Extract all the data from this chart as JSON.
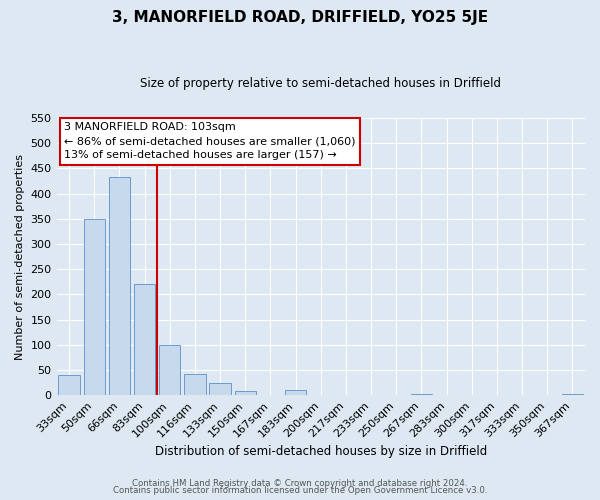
{
  "title": "3, MANORFIELD ROAD, DRIFFIELD, YO25 5JE",
  "subtitle": "Size of property relative to semi-detached houses in Driffield",
  "xlabel": "Distribution of semi-detached houses by size in Driffield",
  "ylabel": "Number of semi-detached properties",
  "bar_labels": [
    "33sqm",
    "50sqm",
    "66sqm",
    "83sqm",
    "100sqm",
    "116sqm",
    "133sqm",
    "150sqm",
    "167sqm",
    "183sqm",
    "200sqm",
    "217sqm",
    "233sqm",
    "250sqm",
    "267sqm",
    "283sqm",
    "300sqm",
    "317sqm",
    "333sqm",
    "350sqm",
    "367sqm"
  ],
  "bar_values": [
    40,
    350,
    433,
    220,
    100,
    43,
    25,
    8,
    0,
    10,
    0,
    0,
    0,
    0,
    3,
    0,
    0,
    0,
    0,
    0,
    3
  ],
  "bar_color": "#c6d9ed",
  "bar_edge_color": "#5b8fc9",
  "ylim_max": 550,
  "yticks": [
    0,
    50,
    100,
    150,
    200,
    250,
    300,
    350,
    400,
    450,
    500,
    550
  ],
  "vline_position": 3.5,
  "prop_label": "3 MANORFIELD ROAD: 103sqm",
  "ann_line1": "← 86% of semi-detached houses are smaller (1,060)",
  "ann_line2": "13% of semi-detached houses are larger (157) →",
  "vline_color": "#cc0000",
  "ann_edge_color": "#cc0000",
  "ann_face_color": "#ffffff",
  "bg_color": "#dde8f2",
  "grid_color": "#ffffff",
  "footer1": "Contains HM Land Registry data © Crown copyright and database right 2024.",
  "footer2": "Contains public sector information licensed under the Open Government Licence v3.0."
}
